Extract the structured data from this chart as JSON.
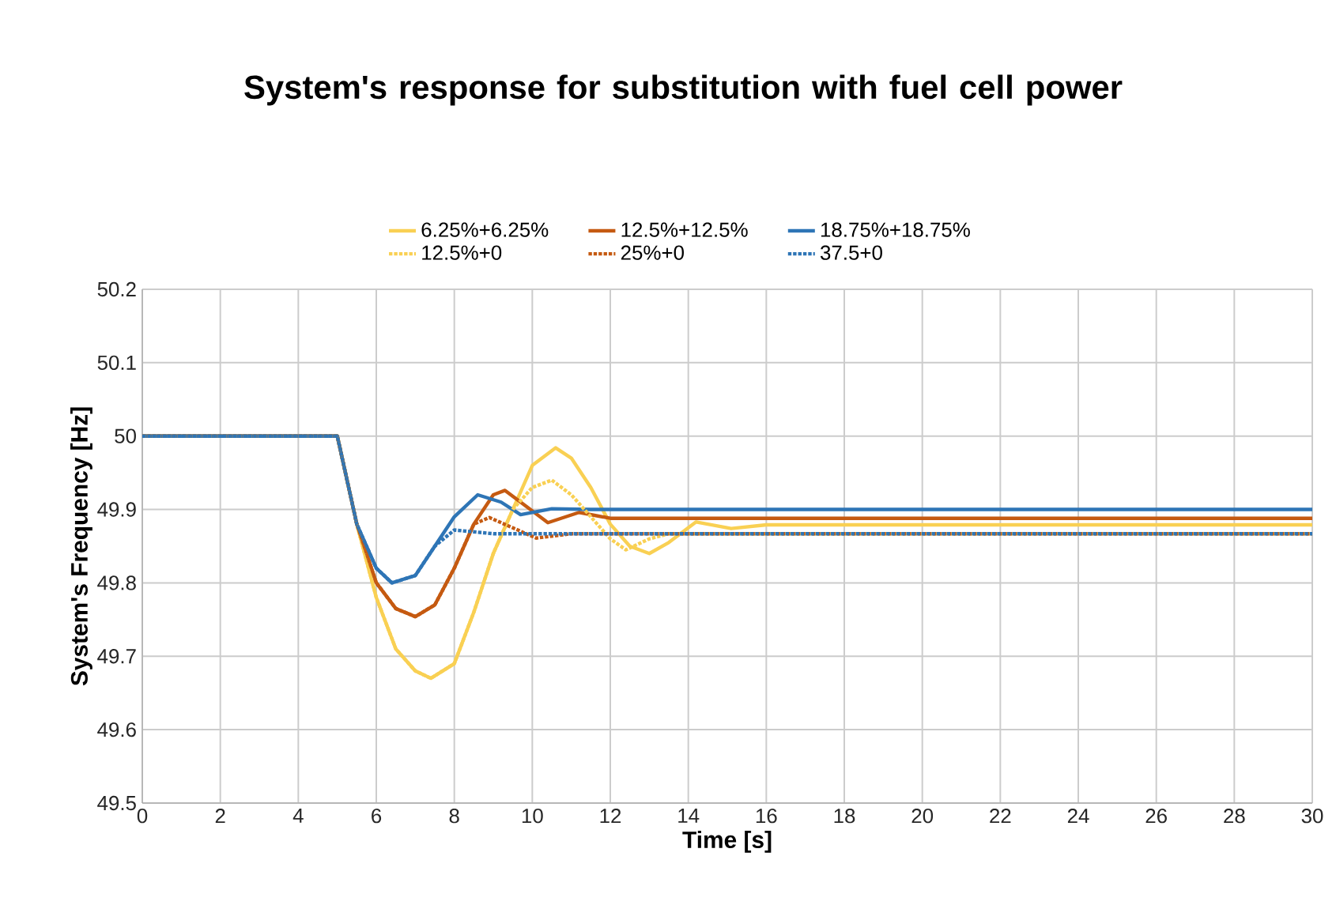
{
  "chart_data": {
    "type": "line",
    "title": "System's response for substitution with fuel cell power",
    "xlabel": "Time [s]",
    "ylabel": "System's Frequency [Hz]",
    "xlim": [
      0,
      30
    ],
    "xticks": [
      0,
      2,
      4,
      6,
      8,
      10,
      12,
      14,
      16,
      18,
      20,
      22,
      24,
      26,
      28,
      30
    ],
    "ylim": [
      49.5,
      50.2
    ],
    "yticks": [
      49.5,
      49.6,
      49.7,
      49.8,
      49.9,
      50,
      50.1,
      50.2
    ],
    "grid": true,
    "legend": "top",
    "series": [
      {
        "name": "6.25%+6.25%",
        "color": "#f9d053",
        "line_style": "solid",
        "x": [
          0,
          5,
          5.5,
          6,
          6.5,
          7,
          7.4,
          8,
          8.5,
          9,
          9.5,
          10,
          10.6,
          11,
          11.5,
          12,
          12.5,
          13,
          13.5,
          14.2,
          15.1,
          16,
          30
        ],
        "values": [
          50,
          50,
          49.88,
          49.78,
          49.71,
          49.68,
          49.67,
          49.69,
          49.76,
          49.84,
          49.9,
          49.96,
          49.984,
          49.97,
          49.93,
          49.88,
          49.85,
          49.84,
          49.855,
          49.883,
          49.874,
          49.879,
          49.879
        ]
      },
      {
        "name": "12.5%+12.5%",
        "color": "#c55a11",
        "line_style": "solid",
        "x": [
          0,
          5,
          5.5,
          6,
          6.5,
          7,
          7.5,
          8,
          8.5,
          9,
          9.3,
          9.7,
          10.4,
          11.2,
          12,
          30
        ],
        "values": [
          50,
          50,
          49.88,
          49.8,
          49.765,
          49.754,
          49.77,
          49.82,
          49.88,
          49.92,
          49.926,
          49.91,
          49.882,
          49.896,
          49.888,
          49.888
        ]
      },
      {
        "name": "18.75%+18.75%",
        "color": "#2e75b6",
        "line_style": "solid",
        "x": [
          0,
          5,
          5.5,
          6,
          6.4,
          7,
          7.5,
          8,
          8.6,
          9.2,
          9.7,
          10.5,
          11.5,
          30
        ],
        "values": [
          50,
          50,
          49.88,
          49.82,
          49.8,
          49.81,
          49.85,
          49.89,
          49.92,
          49.91,
          49.893,
          49.901,
          49.9,
          49.9
        ]
      },
      {
        "name": "12.5%+0",
        "color": "#f9d053",
        "line_style": "dotted",
        "x": [
          0,
          5,
          5.5,
          6,
          6.5,
          7,
          7.4,
          8,
          8.5,
          9,
          9.5,
          10,
          10.5,
          11,
          11.5,
          12,
          12.4,
          13,
          13.5,
          30
        ],
        "values": [
          50,
          50,
          49.88,
          49.78,
          49.71,
          49.68,
          49.67,
          49.69,
          49.76,
          49.84,
          49.9,
          49.93,
          49.94,
          49.92,
          49.89,
          49.86,
          49.845,
          49.86,
          49.867,
          49.867
        ]
      },
      {
        "name": "25%+0",
        "color": "#c55a11",
        "line_style": "dotted",
        "x": [
          0,
          5,
          5.5,
          6,
          6.5,
          7,
          7.5,
          8,
          8.5,
          8.9,
          10.1,
          11,
          30
        ],
        "values": [
          50,
          50,
          49.88,
          49.8,
          49.765,
          49.754,
          49.77,
          49.82,
          49.88,
          49.889,
          49.861,
          49.867,
          49.867
        ]
      },
      {
        "name": "37.5+0",
        "color": "#2e75b6",
        "line_style": "dotted",
        "x": [
          0,
          5,
          5.5,
          6,
          6.4,
          7,
          7.5,
          8,
          9,
          30
        ],
        "values": [
          50,
          50,
          49.88,
          49.82,
          49.8,
          49.81,
          49.85,
          49.872,
          49.867,
          49.867
        ]
      }
    ]
  }
}
